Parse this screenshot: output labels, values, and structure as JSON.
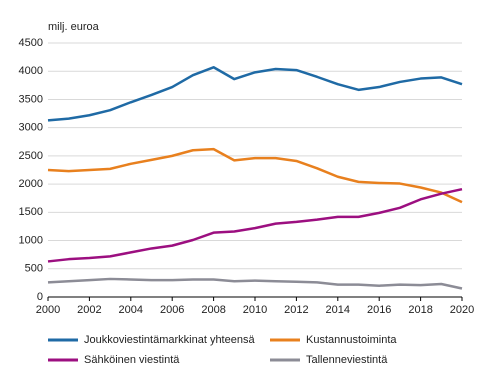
{
  "chart_data": {
    "type": "line",
    "y_unit_label": "milj. euroa",
    "x": [
      2000,
      2001,
      2002,
      2003,
      2004,
      2005,
      2006,
      2007,
      2008,
      2009,
      2010,
      2011,
      2012,
      2013,
      2014,
      2015,
      2016,
      2017,
      2018,
      2019,
      2020
    ],
    "series": [
      {
        "name": "Joukkoviestintämarkkinat yhteensä",
        "color": "#1f6aa5",
        "values": [
          3130,
          3160,
          3220,
          3310,
          3450,
          3580,
          3720,
          3930,
          4070,
          3860,
          3980,
          4040,
          4020,
          3900,
          3770,
          3670,
          3720,
          3810,
          3870,
          3890,
          3770
        ]
      },
      {
        "name": "Kustannustoiminta",
        "color": "#e8801e",
        "values": [
          2250,
          2230,
          2250,
          2270,
          2360,
          2430,
          2500,
          2600,
          2620,
          2420,
          2460,
          2460,
          2410,
          2280,
          2130,
          2040,
          2020,
          2010,
          1940,
          1850,
          1680
        ]
      },
      {
        "name": "Sähköinen viestintä",
        "color": "#9c0f80",
        "values": [
          630,
          670,
          690,
          720,
          790,
          860,
          910,
          1010,
          1140,
          1160,
          1220,
          1300,
          1330,
          1370,
          1420,
          1420,
          1490,
          1580,
          1730,
          1830,
          1910
        ]
      },
      {
        "name": "Tallenneviestintä",
        "color": "#8c8c96",
        "values": [
          260,
          280,
          300,
          320,
          310,
          300,
          300,
          310,
          310,
          280,
          290,
          280,
          270,
          260,
          220,
          220,
          200,
          220,
          210,
          230,
          150
        ]
      }
    ],
    "xlim": [
      2000,
      2020
    ],
    "xticks": [
      2000,
      2002,
      2004,
      2006,
      2008,
      2010,
      2012,
      2014,
      2016,
      2018,
      2020
    ],
    "ylim": [
      0,
      4500
    ],
    "yticks": [
      0,
      500,
      1000,
      1500,
      2000,
      2500,
      3000,
      3500,
      4000,
      4500
    ],
    "grid": true
  }
}
